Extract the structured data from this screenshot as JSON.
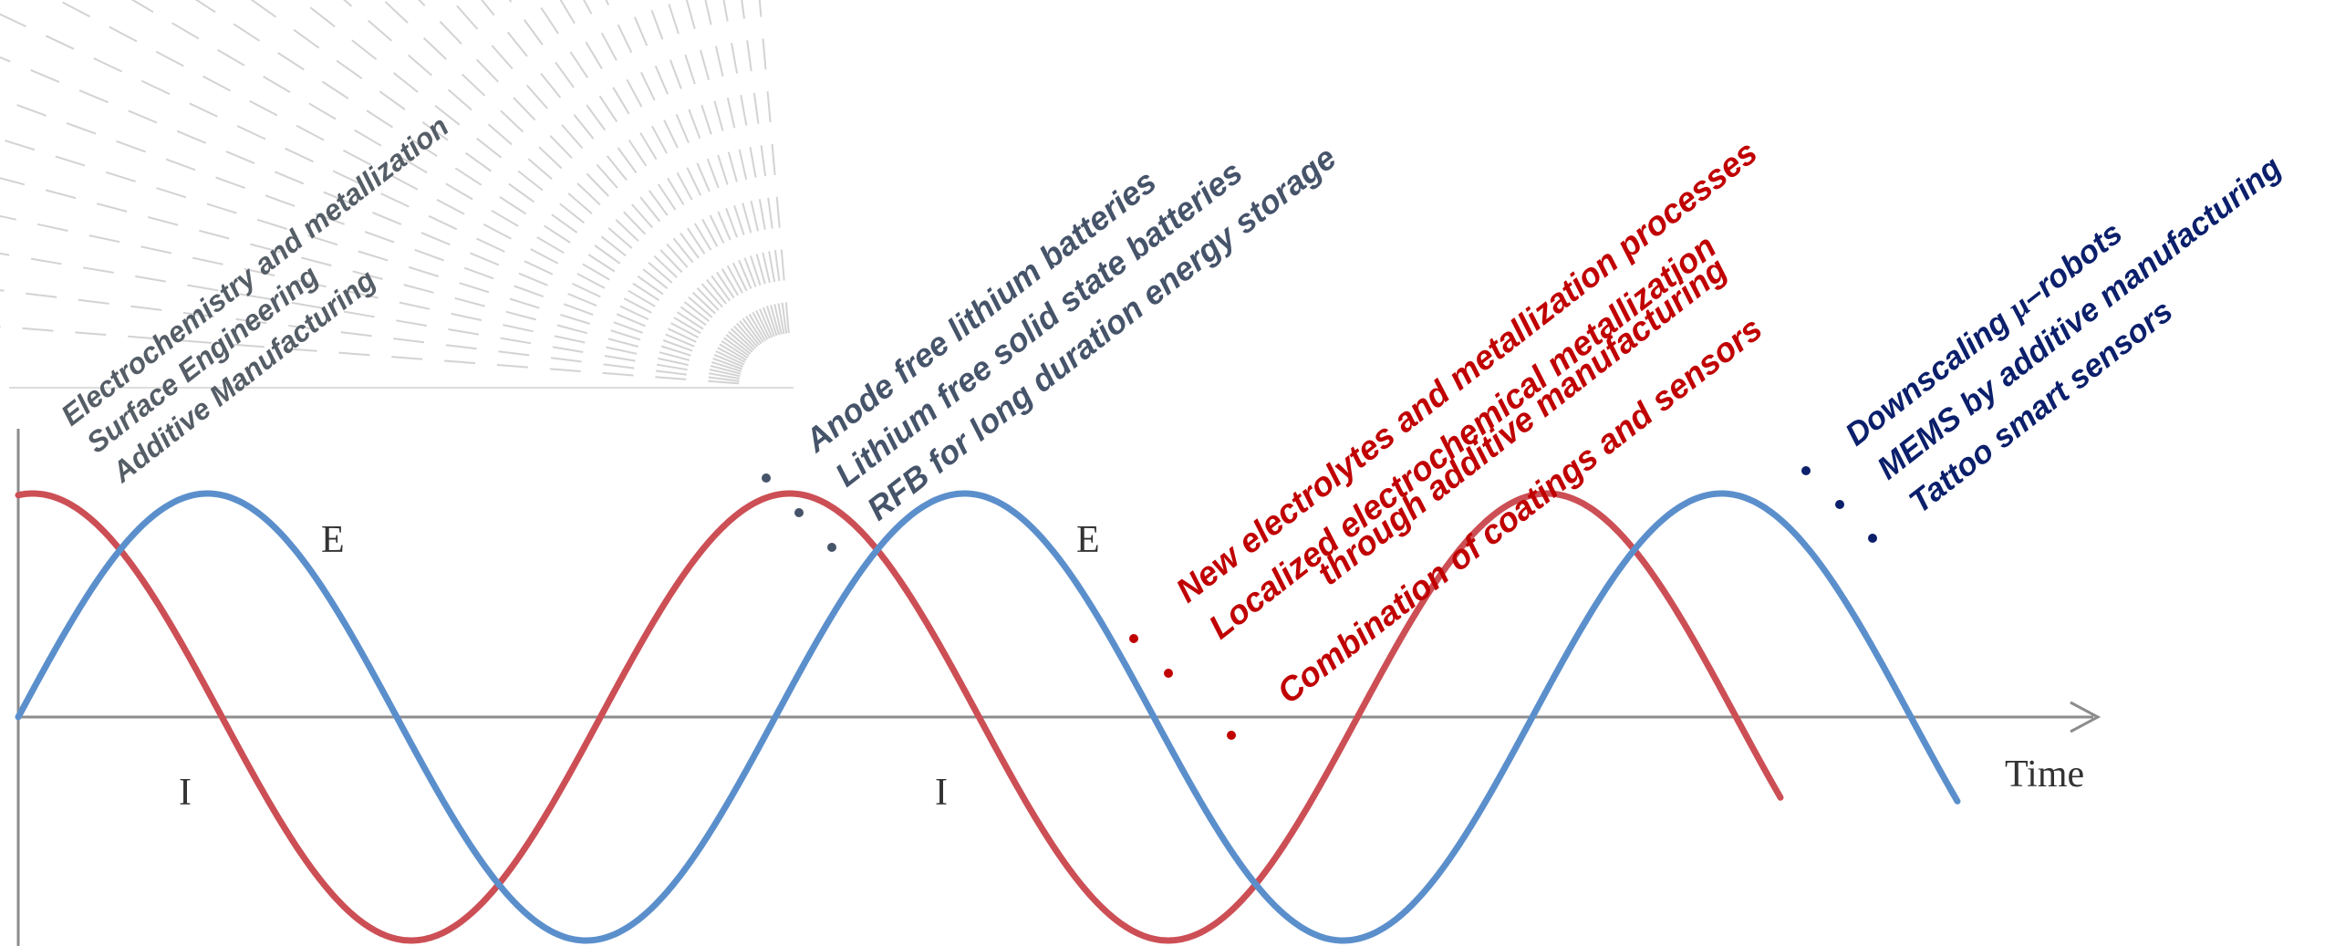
{
  "colors": {
    "e_wave": "#5b8fcc",
    "i_wave": "#cc4f55",
    "axis": "#8c8c8c",
    "group_grey": "#555d66",
    "group_slate": "#46546a",
    "group_red": "#c00000",
    "group_navy": "#0b1f6b",
    "hatch": "#cfcfcf"
  },
  "labels": {
    "e1": "E",
    "e2": "E",
    "i1": "I",
    "i2": "I",
    "time": "Time"
  },
  "groups": {
    "top_left": [
      "Electrochemistry and metallization",
      "Surface Engineering",
      "Additive Manufacturing"
    ],
    "batteries": [
      "Anode free lithium batteries",
      "Lithium free solid state batteries",
      "RFB for long duration energy storage"
    ],
    "processes": [
      "New electrolytes and metallization processes",
      "Localized electrochemical metallization",
      "through additive manufacturing",
      "Combination of coatings and sensors"
    ],
    "devices_a": "Downscaling ",
    "devices_mu": "μ",
    "devices_b": "–robots",
    "devices": [
      "MEMS by additive manufacturing",
      "Tattoo smart sensors"
    ]
  }
}
